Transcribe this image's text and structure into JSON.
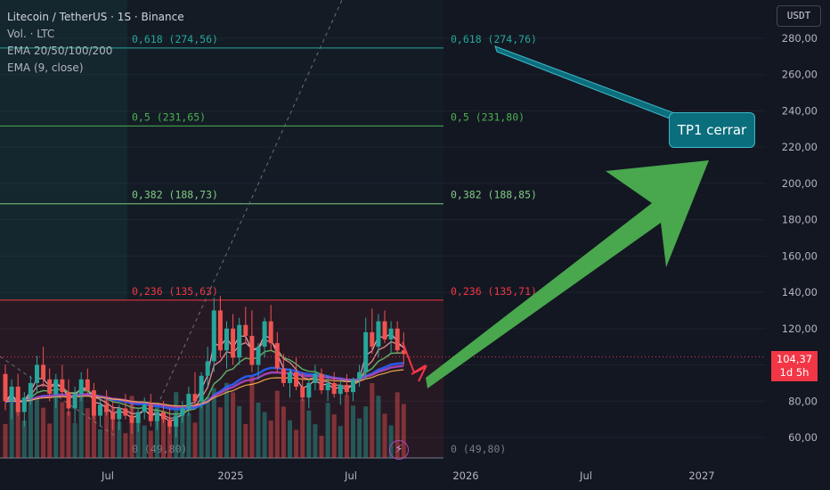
{
  "legend": {
    "symbol": "Litecoin / TetherUS · 1S · Binance",
    "volume": "Vol. · LTC",
    "ema_multi": "EMA 20/50/100/200",
    "ema_single": "EMA (9, close)"
  },
  "currency_button": "USDT",
  "current_price": {
    "value": "104,37",
    "countdown": "1d 5h"
  },
  "annotation": {
    "text": "TP1 cerrar"
  },
  "colors": {
    "background": "#131722",
    "up": "#26a69a",
    "down": "#ef5350",
    "fib_0618": "#26a69a",
    "fib_05": "#4caf50",
    "fib_0382": "#81c784",
    "fib_0236": "#f23645",
    "fib_0": "#787b86",
    "arrow": "#4caf50",
    "callout": "#0b6e7d"
  },
  "chart_data": {
    "type": "candlestick",
    "title": "Litecoin / TetherUS · 1S · Binance",
    "y_axis": {
      "ticks": [
        "60,00",
        "80,00",
        "100,00",
        "120,00",
        "140,00",
        "160,00",
        "180,00",
        "200,00",
        "220,00",
        "240,00",
        "260,00",
        "280,00"
      ],
      "range": [
        50,
        287
      ]
    },
    "x_axis": {
      "ticks": [
        "Jul",
        "2025",
        "Jul",
        "2026",
        "Jul",
        "2027"
      ]
    },
    "fib_levels": [
      {
        "ratio": 0.618,
        "left_label": "0,618 (274,56)",
        "right_label": "0,618 (274,76)",
        "value": 274.66
      },
      {
        "ratio": 0.5,
        "left_label": "0,5 (231,65)",
        "right_label": "0,5 (231,80)",
        "value": 231.7
      },
      {
        "ratio": 0.382,
        "left_label": "0,382 (188,73)",
        "right_label": "0,382 (188,85)",
        "value": 188.8
      },
      {
        "ratio": 0.236,
        "left_label": "0,236 (135,63)",
        "right_label": "0,236 (135,71)",
        "value": 135.7
      },
      {
        "ratio": 0,
        "left_label": "0 (49,80)",
        "right_label": "0 (49,80)",
        "value": 49.8
      }
    ],
    "current_price": 104.37,
    "candles": [
      {
        "o": 95,
        "h": 100,
        "l": 75,
        "c": 80
      },
      {
        "o": 80,
        "h": 92,
        "l": 70,
        "c": 88
      },
      {
        "o": 88,
        "h": 95,
        "l": 72,
        "c": 74
      },
      {
        "o": 74,
        "h": 85,
        "l": 66,
        "c": 82
      },
      {
        "o": 82,
        "h": 94,
        "l": 78,
        "c": 90
      },
      {
        "o": 90,
        "h": 105,
        "l": 85,
        "c": 100
      },
      {
        "o": 100,
        "h": 110,
        "l": 88,
        "c": 92
      },
      {
        "o": 92,
        "h": 98,
        "l": 80,
        "c": 84
      },
      {
        "o": 84,
        "h": 95,
        "l": 76,
        "c": 92
      },
      {
        "o": 92,
        "h": 100,
        "l": 82,
        "c": 85
      },
      {
        "o": 85,
        "h": 92,
        "l": 72,
        "c": 76
      },
      {
        "o": 76,
        "h": 88,
        "l": 68,
        "c": 84
      },
      {
        "o": 84,
        "h": 96,
        "l": 80,
        "c": 92
      },
      {
        "o": 92,
        "h": 98,
        "l": 84,
        "c": 86
      },
      {
        "o": 86,
        "h": 90,
        "l": 70,
        "c": 72
      },
      {
        "o": 72,
        "h": 82,
        "l": 66,
        "c": 78
      },
      {
        "o": 78,
        "h": 86,
        "l": 72,
        "c": 74
      },
      {
        "o": 74,
        "h": 80,
        "l": 64,
        "c": 70
      },
      {
        "o": 70,
        "h": 78,
        "l": 64,
        "c": 76
      },
      {
        "o": 76,
        "h": 84,
        "l": 70,
        "c": 72
      },
      {
        "o": 72,
        "h": 80,
        "l": 62,
        "c": 68
      },
      {
        "o": 68,
        "h": 76,
        "l": 63,
        "c": 74
      },
      {
        "o": 74,
        "h": 82,
        "l": 70,
        "c": 78
      },
      {
        "o": 78,
        "h": 84,
        "l": 66,
        "c": 69
      },
      {
        "o": 69,
        "h": 76,
        "l": 64,
        "c": 74
      },
      {
        "o": 74,
        "h": 80,
        "l": 68,
        "c": 70
      },
      {
        "o": 70,
        "h": 76,
        "l": 62,
        "c": 66
      },
      {
        "o": 66,
        "h": 74,
        "l": 60,
        "c": 72
      },
      {
        "o": 72,
        "h": 80,
        "l": 68,
        "c": 76
      },
      {
        "o": 76,
        "h": 88,
        "l": 72,
        "c": 84
      },
      {
        "o": 84,
        "h": 96,
        "l": 78,
        "c": 80
      },
      {
        "o": 80,
        "h": 96,
        "l": 76,
        "c": 94
      },
      {
        "o": 94,
        "h": 110,
        "l": 88,
        "c": 102
      },
      {
        "o": 102,
        "h": 137,
        "l": 96,
        "c": 130
      },
      {
        "o": 130,
        "h": 138,
        "l": 104,
        "c": 108
      },
      {
        "o": 108,
        "h": 124,
        "l": 98,
        "c": 120
      },
      {
        "o": 120,
        "h": 128,
        "l": 100,
        "c": 104
      },
      {
        "o": 104,
        "h": 126,
        "l": 100,
        "c": 122
      },
      {
        "o": 122,
        "h": 132,
        "l": 112,
        "c": 116
      },
      {
        "o": 116,
        "h": 130,
        "l": 96,
        "c": 100
      },
      {
        "o": 100,
        "h": 112,
        "l": 92,
        "c": 110
      },
      {
        "o": 110,
        "h": 126,
        "l": 104,
        "c": 124
      },
      {
        "o": 124,
        "h": 133,
        "l": 108,
        "c": 112
      },
      {
        "o": 112,
        "h": 118,
        "l": 96,
        "c": 98
      },
      {
        "o": 98,
        "h": 106,
        "l": 88,
        "c": 90
      },
      {
        "o": 90,
        "h": 98,
        "l": 82,
        "c": 96
      },
      {
        "o": 96,
        "h": 104,
        "l": 86,
        "c": 88
      },
      {
        "o": 88,
        "h": 96,
        "l": 80,
        "c": 82
      },
      {
        "o": 82,
        "h": 92,
        "l": 76,
        "c": 90
      },
      {
        "o": 90,
        "h": 100,
        "l": 86,
        "c": 95
      },
      {
        "o": 95,
        "h": 98,
        "l": 84,
        "c": 86
      },
      {
        "o": 86,
        "h": 94,
        "l": 80,
        "c": 90
      },
      {
        "o": 90,
        "h": 96,
        "l": 82,
        "c": 84
      },
      {
        "o": 84,
        "h": 92,
        "l": 78,
        "c": 89
      },
      {
        "o": 89,
        "h": 95,
        "l": 83,
        "c": 85
      },
      {
        "o": 85,
        "h": 93,
        "l": 80,
        "c": 92
      },
      {
        "o": 92,
        "h": 100,
        "l": 88,
        "c": 96
      },
      {
        "o": 96,
        "h": 126,
        "l": 92,
        "c": 118
      },
      {
        "o": 118,
        "h": 131,
        "l": 106,
        "c": 110
      },
      {
        "o": 110,
        "h": 128,
        "l": 104,
        "c": 124
      },
      {
        "o": 124,
        "h": 130,
        "l": 112,
        "c": 114
      },
      {
        "o": 114,
        "h": 124,
        "l": 106,
        "c": 120
      },
      {
        "o": 120,
        "h": 124,
        "l": 106,
        "c": 108
      },
      {
        "o": 108,
        "h": 118,
        "l": 100,
        "c": 106
      }
    ]
  }
}
